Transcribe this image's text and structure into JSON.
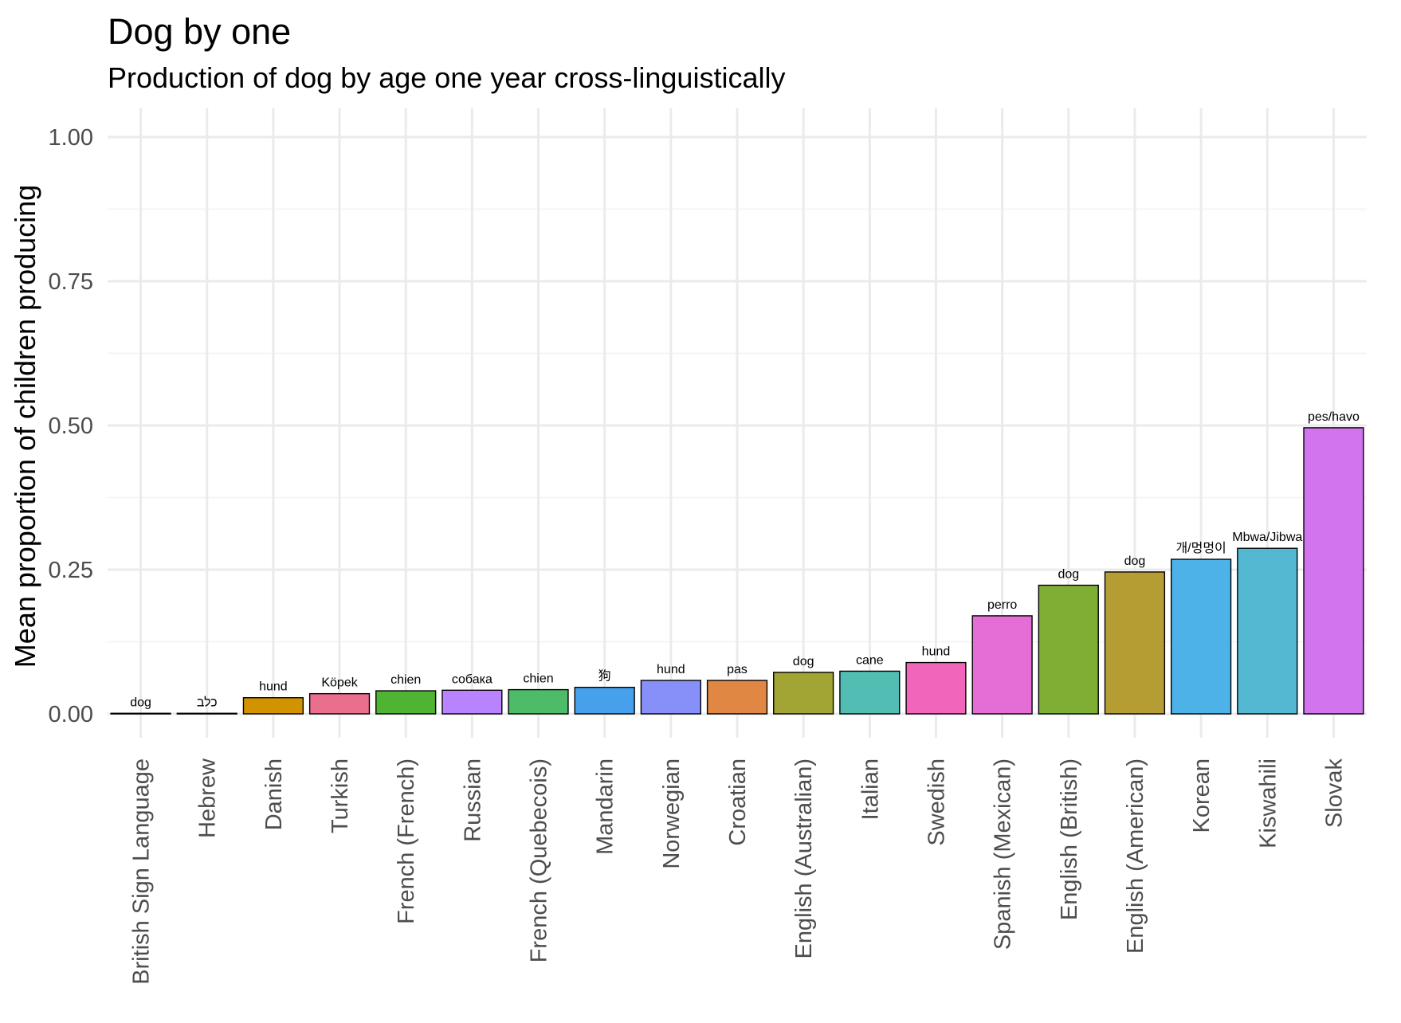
{
  "chart_data": {
    "type": "bar",
    "title": "Dog by one",
    "subtitle": "Production of dog by age one year cross-linguistically",
    "xlabel": "",
    "ylabel": "Mean proportion  of children producing",
    "ylim": [
      0,
      1.05
    ],
    "y_ticks": [
      "0.00",
      "0.25",
      "0.50",
      "0.75",
      "1.00"
    ],
    "grid": true,
    "legend": "none",
    "categories": [
      "British Sign Language",
      "Hebrew",
      "Danish",
      "Turkish",
      "French (French)",
      "Russian",
      "French (Quebecois)",
      "Mandarin",
      "Norwegian",
      "Croatian",
      "English (Australian)",
      "Italian",
      "Swedish",
      "Spanish (Mexican)",
      "English (British)",
      "English (American)",
      "Korean",
      "Kiswahili",
      "Slovak"
    ],
    "values": [
      0.001,
      0.001,
      0.028,
      0.035,
      0.04,
      0.041,
      0.042,
      0.046,
      0.058,
      0.058,
      0.072,
      0.074,
      0.089,
      0.17,
      0.223,
      0.246,
      0.268,
      0.287,
      0.496
    ],
    "bar_labels": [
      "dog",
      "כלב",
      "hund",
      "Köpek",
      "chien",
      "собака",
      "chien",
      "狗",
      "hund",
      "pas",
      "dog",
      "cane",
      "hund",
      "perro",
      "dog",
      "dog",
      "개/멍멍이",
      "Mbwa/Jibwa",
      "pes/havo"
    ],
    "colors": [
      "#F8766D",
      "#E88526",
      "#D39200",
      "#EA6F8F",
      "#4FB432",
      "#B983FF",
      "#4EBB68",
      "#46A0EC",
      "#8790F8",
      "#DF8743",
      "#A2A533",
      "#51BDB3",
      "#F166BB",
      "#E56ED6",
      "#7FAE35",
      "#B69D33",
      "#4DB2E8",
      "#54B8D2",
      "#D274EE"
    ]
  }
}
